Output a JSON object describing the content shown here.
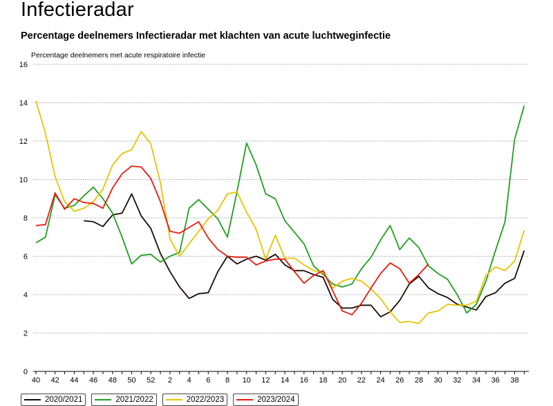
{
  "page": {
    "title": "Infectieradar"
  },
  "chart_data": {
    "type": "line",
    "title": "Percentage deelnemers Infectieradar met klachten van acute luchtweginfectie",
    "ylabel": "Percentage deelnemers met acute respiratoire infectie",
    "xlabel": "",
    "ylim": [
      0,
      16
    ],
    "yticks": [
      0,
      2,
      4,
      6,
      8,
      10,
      12,
      14,
      16
    ],
    "grid": true,
    "legend_position": "bottom",
    "x": [
      "40",
      "41",
      "42",
      "43",
      "44",
      "45",
      "46",
      "47",
      "48",
      "49",
      "50",
      "51",
      "52",
      "1",
      "2",
      "3",
      "4",
      "5",
      "6",
      "7",
      "8",
      "9",
      "10",
      "11",
      "12",
      "13",
      "14",
      "15",
      "16",
      "17",
      "18",
      "19",
      "20",
      "21",
      "22",
      "23",
      "24",
      "25",
      "26",
      "27",
      "28",
      "29",
      "30",
      "31",
      "32",
      "33",
      "34",
      "35",
      "36",
      "37",
      "38",
      "39"
    ],
    "x_tick_labels": [
      "40",
      "42",
      "44",
      "46",
      "48",
      "50",
      "52",
      "2",
      "4",
      "6",
      "8",
      "10",
      "12",
      "14",
      "16",
      "18",
      "20",
      "22",
      "24",
      "26",
      "28",
      "30",
      "32",
      "34",
      "36",
      "38"
    ],
    "series": [
      {
        "name": "2020/2021",
        "color": "#1a0a00",
        "values": [
          null,
          null,
          null,
          null,
          null,
          7.85,
          7.8,
          7.55,
          8.15,
          8.25,
          9.25,
          8.1,
          7.45,
          6.15,
          5.2,
          4.4,
          3.8,
          4.05,
          4.1,
          5.2,
          6.0,
          5.6,
          5.85,
          6.0,
          5.8,
          6.1,
          5.55,
          5.25,
          5.25,
          5.05,
          4.9,
          3.75,
          3.3,
          3.3,
          3.45,
          3.45,
          2.85,
          3.1,
          3.7,
          4.55,
          4.95,
          4.35,
          4.05,
          3.85,
          3.5,
          3.35,
          3.2,
          3.9,
          4.1,
          4.6,
          4.85,
          6.3
        ]
      },
      {
        "name": "2021/2022",
        "color": "#1f9e1f",
        "values": [
          6.7,
          7.0,
          9.2,
          8.5,
          8.65,
          9.15,
          9.6,
          9.0,
          8.25,
          7.0,
          5.6,
          6.05,
          6.1,
          5.7,
          6.0,
          6.2,
          8.5,
          8.95,
          8.45,
          7.95,
          7.0,
          9.35,
          11.9,
          10.75,
          9.25,
          9.0,
          7.85,
          7.25,
          6.65,
          5.5,
          5.05,
          4.55,
          4.4,
          4.55,
          5.35,
          5.95,
          6.85,
          7.6,
          6.35,
          6.95,
          6.45,
          5.5,
          5.1,
          4.8,
          4.0,
          3.05,
          3.5,
          4.7,
          6.3,
          7.8,
          12.1,
          13.85
        ]
      },
      {
        "name": "2022/2023",
        "color": "#e8c300",
        "values": [
          14.1,
          12.4,
          10.15,
          8.85,
          8.35,
          8.5,
          8.85,
          9.5,
          10.75,
          11.35,
          11.55,
          12.5,
          11.85,
          9.85,
          6.9,
          6.0,
          6.65,
          7.3,
          7.95,
          8.4,
          9.25,
          9.35,
          8.3,
          7.4,
          5.85,
          7.1,
          5.9,
          5.9,
          5.55,
          5.25,
          5.15,
          4.35,
          4.7,
          4.85,
          4.7,
          4.3,
          3.8,
          3.1,
          2.55,
          2.6,
          2.5,
          3.05,
          3.15,
          3.5,
          3.45,
          3.45,
          3.65,
          5.0,
          5.45,
          5.25,
          5.75,
          7.35
        ]
      },
      {
        "name": "2023/2024",
        "color": "#e8190f",
        "values": [
          7.6,
          7.65,
          9.3,
          8.45,
          9.0,
          8.8,
          8.75,
          8.5,
          9.55,
          10.3,
          10.7,
          10.65,
          10.05,
          8.85,
          7.3,
          7.2,
          7.5,
          7.8,
          6.95,
          6.35,
          6.0,
          5.95,
          5.95,
          5.55,
          5.75,
          5.85,
          5.85,
          5.2,
          4.6,
          5.0,
          5.25,
          4.2,
          3.15,
          2.95,
          3.55,
          4.35,
          5.1,
          5.65,
          5.35,
          4.6,
          5.05,
          5.6,
          null,
          null,
          null,
          null,
          null,
          null,
          null,
          null,
          null,
          null
        ]
      }
    ]
  }
}
